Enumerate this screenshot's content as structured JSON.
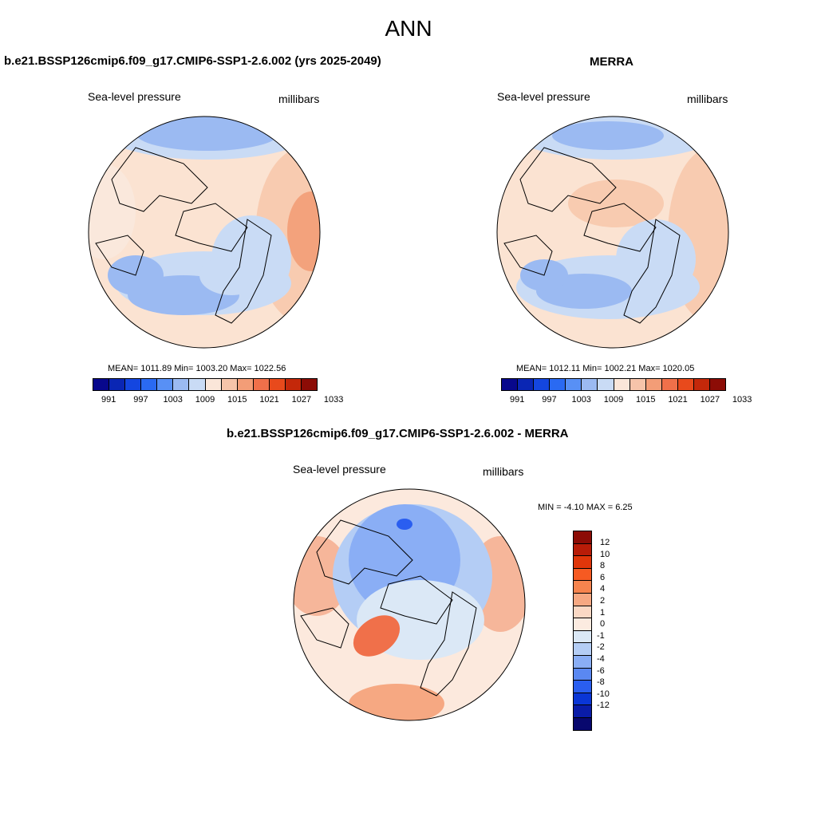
{
  "main_title": "ANN",
  "panels": [
    {
      "title": "b.e21.BSSP126cmip6.f09_g17.CMIP6-SSP1-2.6.002 (yrs 2025-2049)",
      "variable": "Sea-level pressure",
      "units": "millibars",
      "stats": "MEAN= 1011.89  Min= 1003.20  Max= 1022.56",
      "mean": 1011.89,
      "min": 1003.2,
      "max": 1022.56
    },
    {
      "title": "MERRA",
      "variable": "Sea-level pressure",
      "units": "millibars",
      "stats": "MEAN= 1012.11  Min= 1002.21  Max= 1020.05",
      "mean": 1012.11,
      "min": 1002.21,
      "max": 1020.05
    },
    {
      "title": "b.e21.BSSP126cmip6.f09_g17.CMIP6-SSP1-2.6.002 - MERRA",
      "variable": "Sea-level pressure",
      "units": "millibars",
      "stats": "MIN =  -4.10 MAX =   6.25",
      "min": -4.1,
      "max": 6.25
    }
  ],
  "abs_colorbar": {
    "colors": [
      "#08088c",
      "#0a26b4",
      "#1446e0",
      "#2a6af2",
      "#5890f5",
      "#9bbaf2",
      "#c9dbf5",
      "#fae6d9",
      "#f6c4aa",
      "#f39d77",
      "#f0704a",
      "#e84a1c",
      "#c4280a",
      "#8c0c06"
    ],
    "tick_labels": [
      "991",
      "997",
      "1003",
      "1009",
      "1015",
      "1021",
      "1027",
      "1033"
    ]
  },
  "diff_colorbar": {
    "colors": [
      "#8c0c06",
      "#b81c08",
      "#e0360a",
      "#f65a22",
      "#f6844e",
      "#f6a882",
      "#fad8c4",
      "#fcebe0",
      "#dbe8f6",
      "#b4cdf5",
      "#8aaef5",
      "#5a88f2",
      "#2a5ef0",
      "#0a36d6",
      "#0a1ca8",
      "#08086e"
    ],
    "tick_labels": [
      "12",
      "10",
      "8",
      "6",
      "4",
      "2",
      "1",
      "0",
      "-1",
      "-2",
      "-4",
      "-6",
      "-8",
      "-10",
      "-12"
    ]
  }
}
